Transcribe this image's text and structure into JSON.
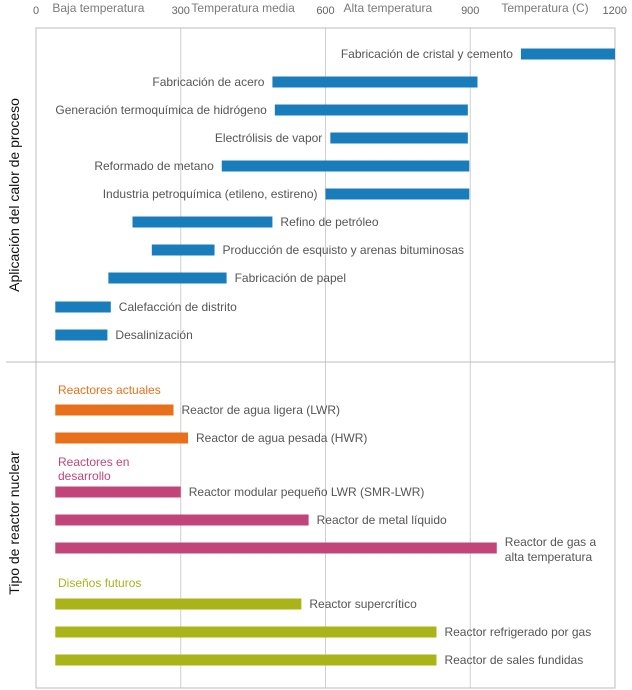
{
  "chart_data": {
    "type": "bar",
    "orientation": "horizontal",
    "x_axis": {
      "title": "Temperatura (C)",
      "ticks": [
        0,
        300,
        600,
        900,
        1200
      ],
      "range": [
        0,
        1200
      ],
      "bands": [
        "Baja temperatura",
        "Temperatura media",
        "Alta temperatura"
      ],
      "grid": true
    },
    "panels": [
      {
        "title": "Aplicación del calor de proceso",
        "bars": [
          {
            "label": "Fabricación de cristal y cemento",
            "start": 1005,
            "end": 1200,
            "color": "#1a7dbb"
          },
          {
            "label": "Fabricación de acero",
            "start": 490,
            "end": 915,
            "color": "#1a7dbb"
          },
          {
            "label": "Generación termoquímica de hidrógeno",
            "start": 495,
            "end": 895,
            "color": "#1a7dbb"
          },
          {
            "label": "Electrólisis de vapor",
            "start": 610,
            "end": 895,
            "color": "#1a7dbb"
          },
          {
            "label": "Reformado de metano",
            "start": 385,
            "end": 898,
            "color": "#1a7dbb"
          },
          {
            "label": "Industria petroquímica (etileno, estireno)",
            "start": 600,
            "end": 898,
            "color": "#1a7dbb"
          },
          {
            "label": "Refino de petróleo",
            "start": 200,
            "end": 490,
            "color": "#1a7dbb"
          },
          {
            "label": "Producción de esquisto y arenas bituminosas",
            "start": 240,
            "end": 370,
            "color": "#1a7dbb"
          },
          {
            "label": "Fabricación de papel",
            "start": 150,
            "end": 395,
            "color": "#1a7dbb"
          },
          {
            "label": "Calefacción de distrito",
            "start": 40,
            "end": 155,
            "color": "#1a7dbb"
          },
          {
            "label": "Desalinización",
            "start": 40,
            "end": 148,
            "color": "#1a7dbb"
          }
        ]
      },
      {
        "title": "Tipo de reactor nuclear",
        "groups": [
          {
            "name": "Reactores actuales",
            "color": "#e8701a",
            "bars": [
              {
                "label": "Reactor de agua ligera (LWR)",
                "start": 40,
                "end": 285
              },
              {
                "label": "Reactor de agua pesada (HWR)",
                "start": 40,
                "end": 315
              }
            ]
          },
          {
            "name": "Reactores en desarrollo",
            "color": "#c2457a",
            "bars": [
              {
                "label": "Reactor modular pequeño LWR (SMR-LWR)",
                "start": 40,
                "end": 300
              },
              {
                "label": "Reactor de metal líquido",
                "start": 40,
                "end": 565
              },
              {
                "label": "Reactor de gas a alta temperatura",
                "start": 40,
                "end": 955
              }
            ]
          },
          {
            "name": "Diseños futuros",
            "color": "#a8b418",
            "bars": [
              {
                "label": "Reactor supercrítico",
                "start": 40,
                "end": 550
              },
              {
                "label": "Reactor refrigerado por gas",
                "start": 40,
                "end": 830
              },
              {
                "label": "Reactor de sales fundidas",
                "start": 40,
                "end": 830
              }
            ]
          }
        ]
      }
    ]
  }
}
